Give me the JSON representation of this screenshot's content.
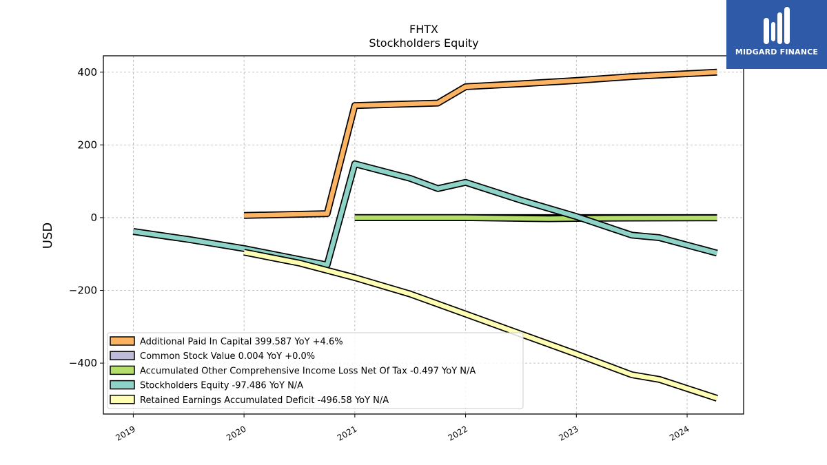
{
  "chart_data": {
    "type": "line",
    "title": "FHTX",
    "subtitle": "Stockholders  Equity",
    "ylabel": "USD",
    "xlabel": "",
    "ylim": [
      -540,
      445
    ],
    "xlim": [
      2018.73,
      2024.51
    ],
    "yticks": [
      400,
      200,
      0,
      -200,
      -400
    ],
    "ytick_labels": [
      "400",
      "200",
      "0",
      "−200",
      "−400"
    ],
    "xticks": [
      2019,
      2020,
      2021,
      2022,
      2023,
      2024
    ],
    "xtick_labels": [
      "2019",
      "2020",
      "2021",
      "2022",
      "2023",
      "2024"
    ],
    "grid": true,
    "legend_position": "lower-left",
    "series": [
      {
        "name": "Additional Paid In Capital  399.587 YoY +4.6%",
        "color": "#fdb462",
        "x": [
          2020.0,
          2020.75,
          2021.0,
          2021.75,
          2022.0,
          2022.5,
          2023.0,
          2023.5,
          2023.75,
          2024.27
        ],
        "y": [
          6,
          11,
          308,
          315,
          360,
          368,
          377,
          388,
          392,
          400
        ]
      },
      {
        "name": "Common Stock Value  0.004 YoY +0.0%",
        "color": "#bebada",
        "x": [
          2021.0,
          2021.5,
          2022.0,
          2022.5,
          2023.0,
          2023.5,
          2024.27
        ],
        "y": [
          0.004,
          0.004,
          0.004,
          0.004,
          0.004,
          0.004,
          0.004
        ]
      },
      {
        "name": "Accumulated Other Comprehensive Income Loss Net Of Tax  -0.497 YoY N/A",
        "color": "#b3de69",
        "x": [
          2021.0,
          2021.5,
          2022.0,
          2022.5,
          2022.75,
          2023.0,
          2023.5,
          2024.27
        ],
        "y": [
          0,
          0,
          0,
          -2,
          -3,
          -2,
          -1,
          -0.5
        ]
      },
      {
        "name": "Stockholders Equity  -97.486 YoY N/A",
        "color": "#8dd3c7",
        "x": [
          2019.0,
          2019.5,
          2020.0,
          2020.75,
          2021.0,
          2021.5,
          2021.75,
          2022.0,
          2022.5,
          2023.0,
          2023.5,
          2023.75,
          2024.27
        ],
        "y": [
          -38,
          -60,
          -85,
          -130,
          148,
          108,
          80,
          97,
          48,
          3,
          -48,
          -55,
          -97.5
        ]
      },
      {
        "name": "Retained Earnings Accumulated Deficit  -496.58 YoY N/A",
        "color": "#ffffb3",
        "x": [
          2020.0,
          2020.5,
          2021.0,
          2021.5,
          2022.0,
          2022.5,
          2023.0,
          2023.5,
          2023.75,
          2024.27
        ],
        "y": [
          -95,
          -125,
          -165,
          -210,
          -265,
          -320,
          -375,
          -432,
          -445,
          -496.58
        ]
      }
    ]
  },
  "logo": {
    "text": "MIDGARD FINANCE",
    "color": "#2f5aa8"
  }
}
